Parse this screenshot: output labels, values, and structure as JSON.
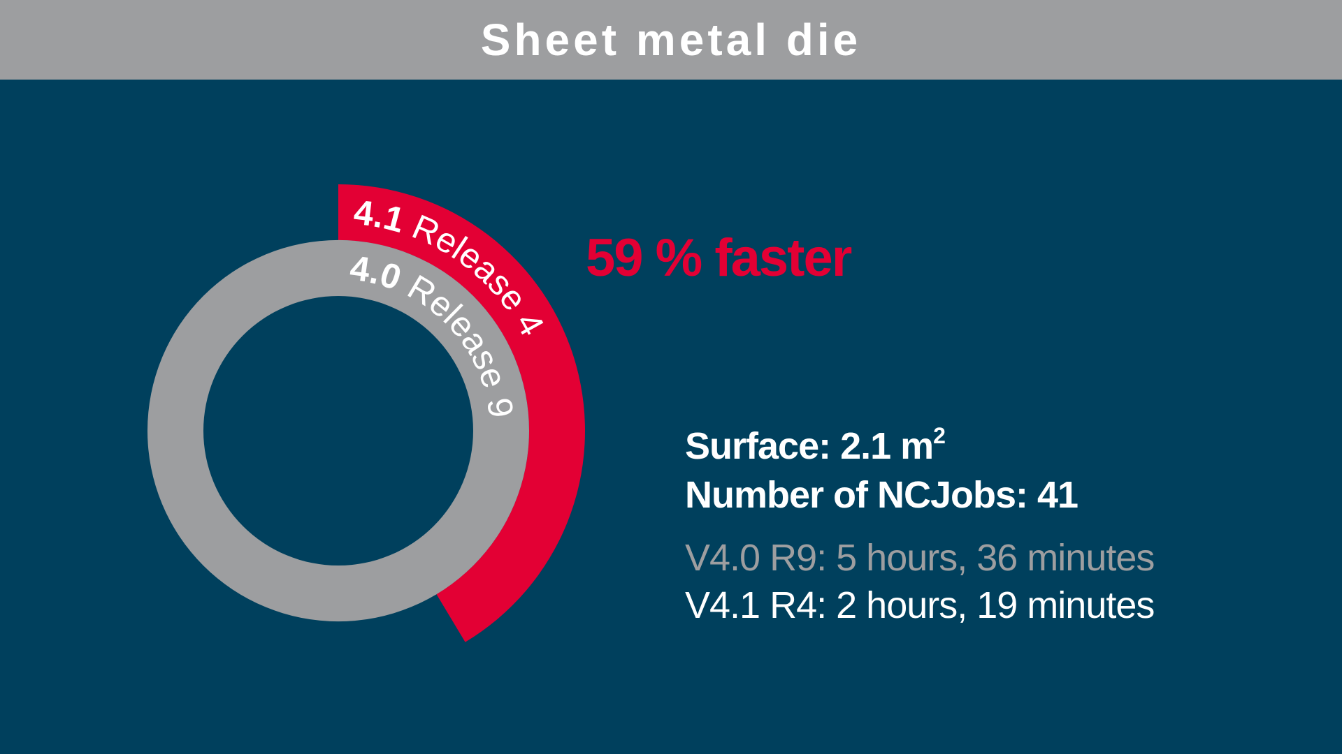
{
  "title": "Sheet metal die",
  "headline": "59 % faster",
  "specs": {
    "surface_label": "Surface: 2.1 m",
    "surface_exp": "2",
    "ncjobs": "Number of NCJobs: 41"
  },
  "timings": {
    "old": "V4.0 R9: 5 hours, 36 minutes",
    "new": "V4.1 R4: 2 hours, 19 minutes"
  },
  "colors": {
    "background": "#00405d",
    "title_bar": "#9d9ea0",
    "old_release": "#9d9ea0",
    "new_release": "#e30034",
    "text": "#ffffff"
  },
  "chart_data": {
    "type": "pie",
    "variant": "concentric-ring",
    "unit": "minutes",
    "series": [
      {
        "name": "4.0 Release 9",
        "version": "4.0",
        "release": "Release 9",
        "value": 336,
        "fraction_of_full_ring": 1.0,
        "color": "#9d9ea0"
      },
      {
        "name": "4.1 Release 4",
        "version": "4.1",
        "release": "Release 4",
        "value": 139,
        "fraction_of_full_ring": 0.414,
        "color": "#e30034"
      }
    ]
  }
}
